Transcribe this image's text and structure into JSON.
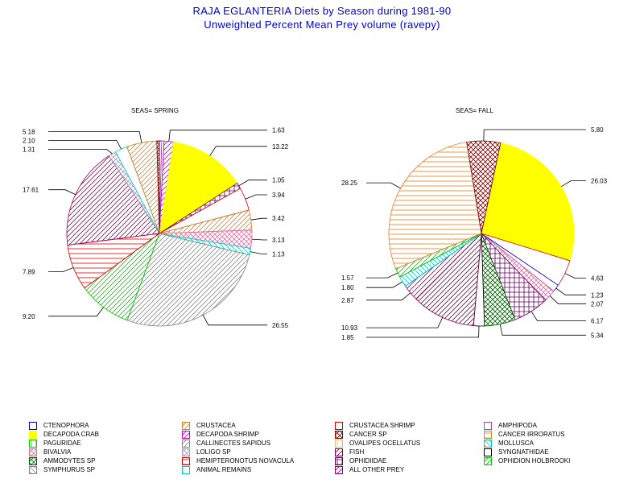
{
  "header": {
    "title": "RAJA EGLANTERIA Diets by Season during 1981-90",
    "subtitle": "Unweighted Percent Mean Prey volume (ravepy)"
  },
  "prey_styles": {
    "CTENOPHORA": {
      "color": "#0000cc",
      "pattern": "empty"
    },
    "CRUSTACEA": {
      "color": "#e08020",
      "pattern": "diag-up"
    },
    "CRUSTACEA SHRIMP": {
      "color": "#e00000",
      "pattern": "empty"
    },
    "AMPHIPODA": {
      "color": "#a050a0",
      "pattern": "empty"
    },
    "DECAPODA CRAB": {
      "color": "#ffff00",
      "pattern": "solid"
    },
    "DECAPODA SHRIMP": {
      "color": "#cc00cc",
      "pattern": "diag-up"
    },
    "CANCER SP": {
      "color": "#800000",
      "pattern": "crosshatch"
    },
    "CANCER IRRORATUS": {
      "color": "#e08020",
      "pattern": "hlines"
    },
    "PAGURIDAE": {
      "color": "#00cc00",
      "pattern": "vlines"
    },
    "CALLINECTES SAPIDUS": {
      "color": "#888888",
      "pattern": "diag-up"
    },
    "OVALIPES OCELLATUS": {
      "color": "#e0c080",
      "pattern": "vlines"
    },
    "MOLLUSCA": {
      "color": "#00cccc",
      "pattern": "diag-down"
    },
    "BIVALVIA": {
      "color": "#e070a0",
      "pattern": "crosshatch"
    },
    "LOLIGO SP": {
      "color": "#a0a0c0",
      "pattern": "crosshatch"
    },
    "FISH": {
      "color": "#800040",
      "pattern": "diag-up"
    },
    "SYNGNATHIDAE": {
      "color": "#000000",
      "pattern": "empty"
    },
    "AMMODYTES SP": {
      "color": "#006000",
      "pattern": "crosshatch"
    },
    "HEMIPTERONOTUS NOVACULA": {
      "color": "#e00000",
      "pattern": "hlines"
    },
    "OPHIDIIDAE": {
      "color": "#600060",
      "pattern": "grid"
    },
    "OPHIDION HOLBROOKI": {
      "color": "#00cc00",
      "pattern": "diag-up"
    },
    "SYMPHURUS SP": {
      "color": "#888888",
      "pattern": "diag-down"
    },
    "ANIMAL REMAINS": {
      "color": "#00cccc",
      "pattern": "empty"
    },
    "ALL OTHER PREY": {
      "color": "#a00060",
      "pattern": "diag-up"
    }
  },
  "legend": {
    "columns": [
      [
        "CTENOPHORA",
        "DECAPODA CRAB",
        "PAGURIDAE",
        "BIVALVIA",
        "AMMODYTES SP",
        "SYMPHURUS SP"
      ],
      [
        "CRUSTACEA",
        "DECAPODA SHRIMP",
        "CALLINECTES SAPIDUS",
        "LOLIGO SP",
        "HEMIPTERONOTUS NOVACULA",
        "ANIMAL REMAINS"
      ],
      [
        "CRUSTACEA SHRIMP",
        "CANCER SP",
        "OVALIPES OCELLATUS",
        "FISH",
        "OPHIDIIDAE",
        "ALL OTHER PREY"
      ],
      [
        "AMPHIPODA",
        "CANCER IRRORATUS",
        "MOLLUSCA",
        "SYNGNATHIDAE",
        "OPHIDION HOLBROOKI"
      ]
    ]
  },
  "chart_data": [
    {
      "type": "pie",
      "panel_title": "SEAS= SPRING",
      "slices": [
        {
          "label": "CTENOPHORA",
          "value": 0.4,
          "labeled": false
        },
        {
          "label": "AMPHIPODA",
          "value": 0.4,
          "labeled": false
        },
        {
          "label": "DECAPODA SHRIMP",
          "value": 1.63,
          "labeled": true,
          "value_label": "1.63"
        },
        {
          "label": "DECAPODA CRAB",
          "value": 13.22,
          "labeled": true,
          "value_label": "13.22"
        },
        {
          "label": "OPHIDIIDAE",
          "value": 1.05,
          "labeled": true,
          "value_label": "1.05"
        },
        {
          "label": "CRUSTACEA SHRIMP",
          "value": 3.94,
          "labeled": true,
          "value_label": "3.94"
        },
        {
          "label": "CRUSTACEA",
          "value": 3.42,
          "labeled": true,
          "value_label": "3.42"
        },
        {
          "label": "BIVALVIA",
          "value": 3.13,
          "labeled": true,
          "value_label": "3.13"
        },
        {
          "label": "MOLLUSCA",
          "value": 1.13,
          "labeled": true,
          "value_label": "1.13"
        },
        {
          "label": "CALLINECTES SAPIDUS",
          "value": 26.55,
          "labeled": true,
          "value_label": "26.55"
        },
        {
          "label": "OPHIDION HOLBROOKI",
          "value": 9.2,
          "labeled": true,
          "value_label": "9.20"
        },
        {
          "label": "HEMIPTERONOTUS NOVACULA",
          "value": 7.89,
          "labeled": true,
          "value_label": "7.89"
        },
        {
          "label": "ALL OTHER PREY",
          "value": 17.61,
          "labeled": true,
          "value_label": "17.61"
        },
        {
          "label": "LOLIGO SP",
          "value": 1.31,
          "labeled": true,
          "value_label": "1.31"
        },
        {
          "label": "ANIMAL REMAINS",
          "value": 2.1,
          "labeled": true,
          "value_label": "2.10"
        },
        {
          "label": "CRUSTACEA",
          "value": 5.18,
          "labeled": true,
          "value_label": "5.18"
        },
        {
          "label": "CANCER SP",
          "value": 0.44,
          "labeled": false
        }
      ]
    },
    {
      "type": "pie",
      "panel_title": "SEAS= FALL",
      "slices": [
        {
          "label": "DECAPODA CRAB",
          "value": 26.03,
          "labeled": true,
          "value_label": "26.03"
        },
        {
          "label": "CRUSTACEA SHRIMP",
          "value": 4.63,
          "labeled": true,
          "value_label": "4.63"
        },
        {
          "label": "CTENOPHORA",
          "value": 1.23,
          "labeled": true,
          "value_label": "1.23"
        },
        {
          "label": "BIVALVIA",
          "value": 2.07,
          "labeled": true,
          "value_label": "2.07"
        },
        {
          "label": "OPHIDIIDAE",
          "value": 6.17,
          "labeled": true,
          "value_label": "6.17"
        },
        {
          "label": "AMMODYTES SP",
          "value": 5.34,
          "labeled": true,
          "value_label": "5.34"
        },
        {
          "label": "SYNGNATHIDAE",
          "value": 1.85,
          "labeled": true,
          "value_label": "1.85"
        },
        {
          "label": "FISH",
          "value": 10.93,
          "labeled": true,
          "value_label": "10.93"
        },
        {
          "label": "ALL OTHER PREY",
          "value": 2.87,
          "labeled": true,
          "value_label": "2.87"
        },
        {
          "label": "MOLLUSCA",
          "value": 1.8,
          "labeled": true,
          "value_label": "1.80"
        },
        {
          "label": "OPHIDION HOLBROOKI",
          "value": 1.57,
          "labeled": true,
          "value_label": "1.57"
        },
        {
          "label": "CANCER IRRORATUS",
          "value": 28.25,
          "labeled": true,
          "value_label": "28.25"
        },
        {
          "label": "CANCER SP",
          "value": 5.8,
          "labeled": true,
          "value_label": "5.80"
        }
      ]
    }
  ]
}
